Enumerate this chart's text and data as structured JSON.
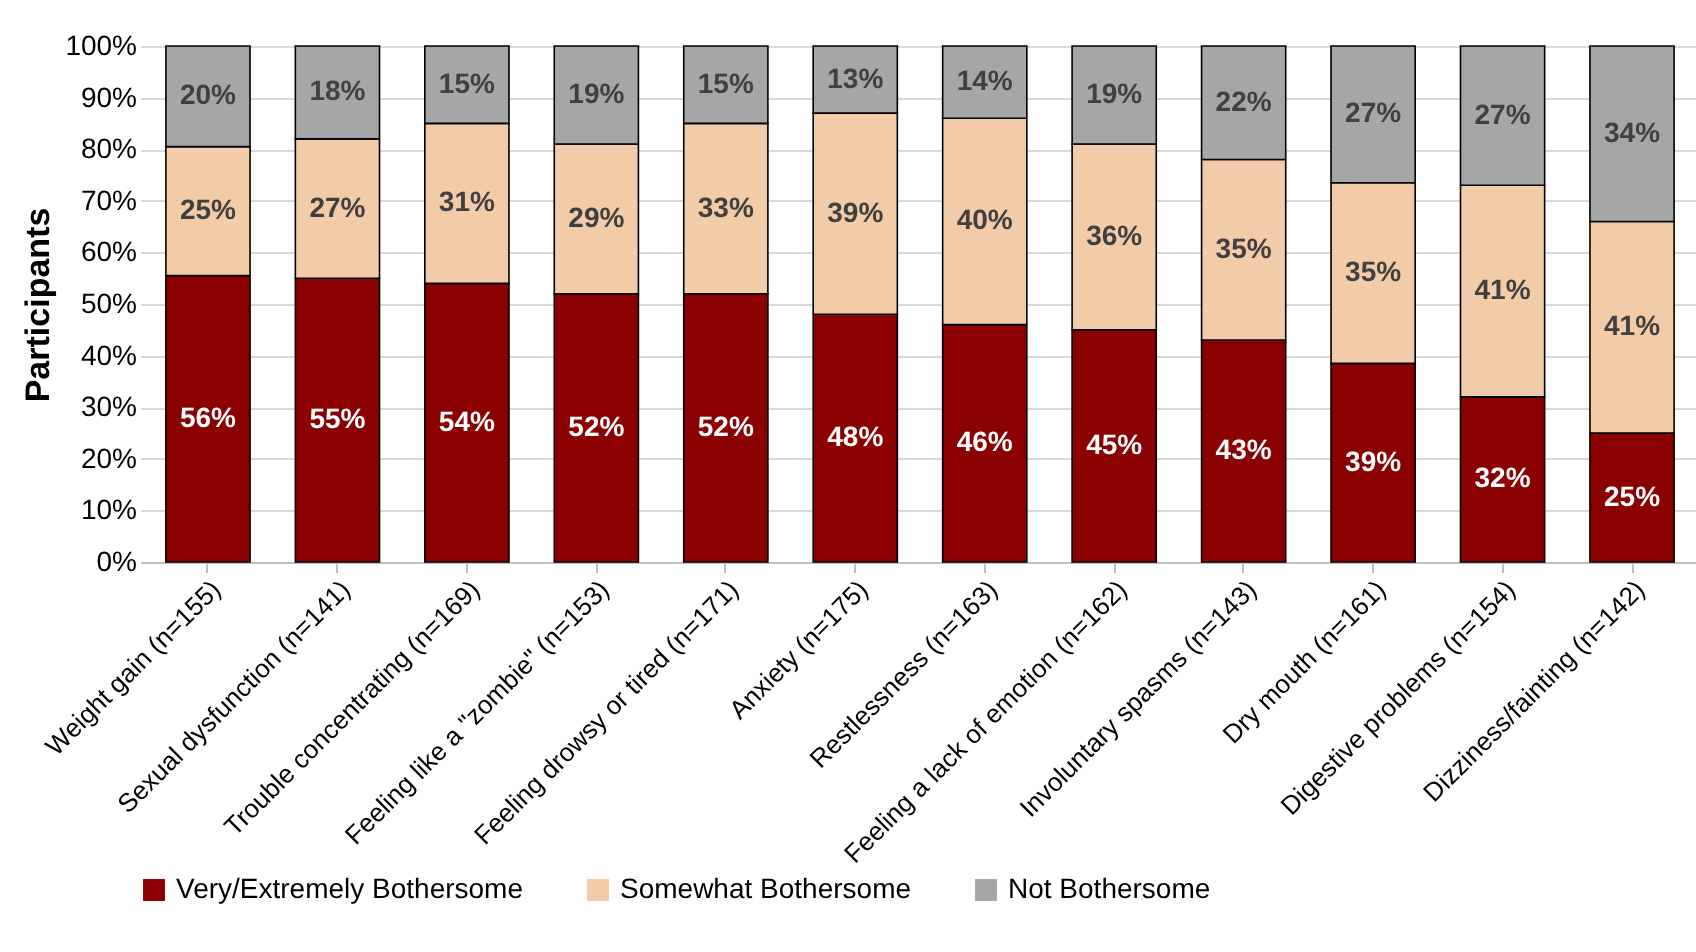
{
  "chart_data": {
    "type": "bar",
    "stacked": true,
    "ylabel": "Participants",
    "categories": [
      "Weight gain (n=155)",
      "Sexual dysfunction (n=141)",
      "Trouble concentrating (n=169)",
      "Feeling like a \"zombie\" (n=153)",
      "Feeling drowsy or tired (n=171)",
      "Anxiety (n=175)",
      "Restlessness (n=163)",
      "Feeling a lack of emotion (n=162)",
      "Involuntary spasms (n=143)",
      "Dry mouth (n=161)",
      "Digestive problems (n=154)",
      "Dizziness/fainting (n=142)"
    ],
    "series": [
      {
        "name": "Very/Extremely Bothersome",
        "color": "#8b0000",
        "values": [
          55.5,
          55,
          54,
          52,
          52,
          48,
          46,
          45,
          43,
          38.5,
          32,
          25
        ],
        "value_labels": [
          "56%",
          "55%",
          "54%",
          "52%",
          "52%",
          "48%",
          "46%",
          "45%",
          "43%",
          "39%",
          "32%",
          "25%"
        ]
      },
      {
        "name": "Somewhat Bothersome",
        "color": "#f2cba8",
        "values": [
          25,
          27,
          31,
          29,
          33,
          39,
          40,
          36,
          35,
          35,
          41,
          41
        ],
        "value_labels": [
          "25%",
          "27%",
          "31%",
          "29%",
          "33%",
          "39%",
          "40%",
          "36%",
          "35%",
          "35%",
          "41%",
          "41%"
        ]
      },
      {
        "name": "Not Bothersome",
        "color": "#a6a6a6",
        "values": [
          19.5,
          18,
          15,
          19,
          15,
          13,
          14,
          19,
          22,
          26.5,
          27,
          34
        ],
        "value_labels": [
          "20%",
          "18%",
          "15%",
          "19%",
          "15%",
          "13%",
          "14%",
          "19%",
          "22%",
          "27%",
          "27%",
          "34%"
        ]
      }
    ],
    "ylim": [
      0,
      100
    ],
    "yticks": [
      {
        "value": 0,
        "label": "0%"
      },
      {
        "value": 10,
        "label": "10%"
      },
      {
        "value": 20,
        "label": "20%"
      },
      {
        "value": 30,
        "label": "30%"
      },
      {
        "value": 40,
        "label": "40%"
      },
      {
        "value": 50,
        "label": "50%"
      },
      {
        "value": 60,
        "label": "60%"
      },
      {
        "value": 70,
        "label": "70%"
      },
      {
        "value": 80,
        "label": "80%"
      },
      {
        "value": 90,
        "label": "90%"
      },
      {
        "value": 100,
        "label": "100%"
      }
    ],
    "grid": "y",
    "legend": "bottom"
  }
}
